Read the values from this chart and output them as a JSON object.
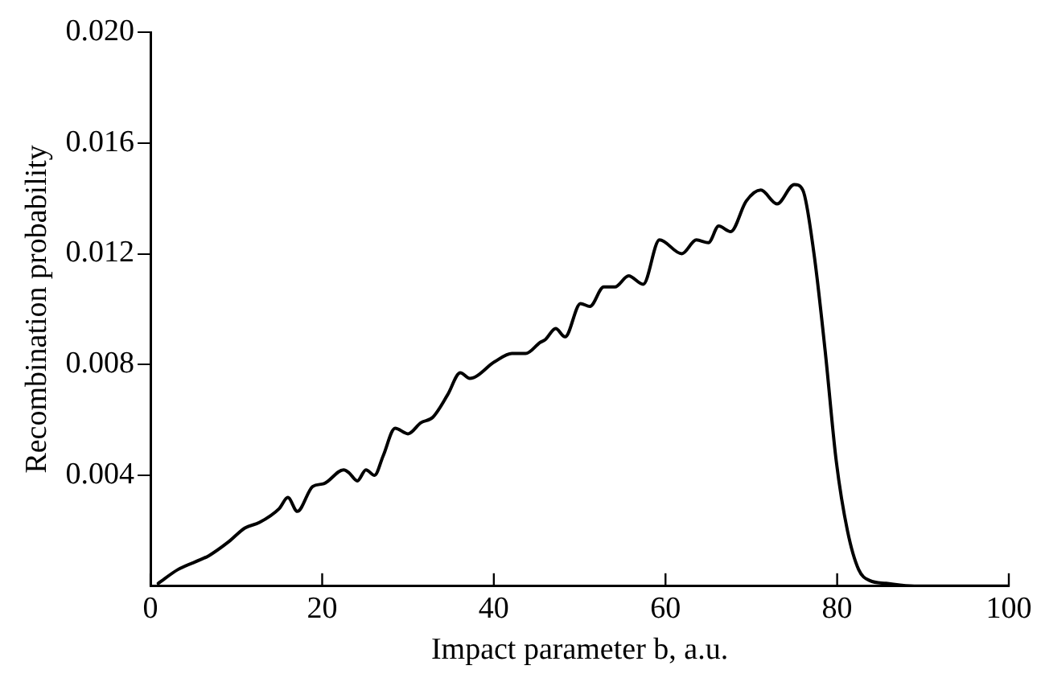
{
  "chart_data": {
    "type": "line",
    "xlabel": "Impact parameter b, a.u.",
    "ylabel": "Recombination probability",
    "x": [
      0.9,
      3.2,
      6.8,
      9.1,
      11.0,
      12.7,
      15.0,
      16.0,
      17.1,
      18.9,
      20.2,
      22.5,
      23.1,
      24.1,
      25.1,
      26.1,
      27.1,
      28.5,
      30.0,
      31.5,
      32.9,
      34.6,
      36.1,
      37.2,
      40.1,
      42.1,
      43.7,
      45.4,
      46.0,
      47.2,
      48.3,
      50.1,
      51.2,
      52.8,
      54.1,
      55.7,
      57.4,
      59.3,
      61.9,
      63.6,
      65.0,
      66.2,
      67.6,
      69.4,
      71.1,
      73.0,
      75.0,
      76.0,
      77.3,
      78.6,
      79.9,
      81.2,
      82.5,
      83.8,
      85.7,
      89.0,
      100
    ],
    "series": [
      {
        "color": "#000000",
        "values": [
          0.0001,
          0.0006,
          0.0011,
          0.0016,
          0.0021,
          0.0023,
          0.0028,
          0.0032,
          0.0027,
          0.0036,
          0.0037,
          0.0042,
          0.0041,
          0.0038,
          0.0042,
          0.004,
          0.0047,
          0.0057,
          0.0055,
          0.0059,
          0.0061,
          0.0069,
          0.0077,
          0.0075,
          0.0081,
          0.0084,
          0.0084,
          0.0088,
          0.0089,
          0.0093,
          0.009,
          0.0102,
          0.0101,
          0.0108,
          0.0108,
          0.0112,
          0.0109,
          0.0125,
          0.012,
          0.0125,
          0.0124,
          0.013,
          0.0128,
          0.0139,
          0.0143,
          0.0138,
          0.0145,
          0.0143,
          0.012,
          0.0085,
          0.0045,
          0.002,
          0.0006,
          0.0002,
          0.0001,
          0,
          0
        ]
      }
    ],
    "xlim": [
      0,
      100
    ],
    "xticks": [
      0,
      20,
      40,
      60,
      80,
      100
    ],
    "ylim": [
      0,
      0.02
    ],
    "yticks": [
      0.004,
      0.008,
      0.012,
      0.016,
      {
        "value": 0.02,
        "label": "0.020"
      }
    ],
    "grid": false,
    "legend": false,
    "marker": "none",
    "line_style": "solid"
  }
}
